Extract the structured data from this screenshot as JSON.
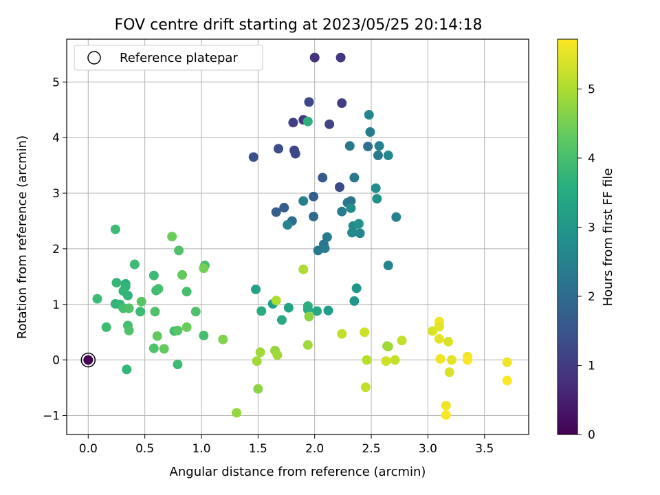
{
  "chart_data": {
    "type": "scatter",
    "title": "FOV centre drift starting at 2023/05/25 20:14:18",
    "xlabel": "Angular distance from reference (arcmin)",
    "ylabel": "Rotation from reference (arcmin)",
    "xlim": [
      -0.19,
      3.89
    ],
    "ylim": [
      -1.34,
      5.77
    ],
    "xticks": [
      0.0,
      0.5,
      1.0,
      1.5,
      2.0,
      2.5,
      3.0,
      3.5
    ],
    "xtick_labels": [
      "0.0",
      "0.5",
      "1.0",
      "1.5",
      "2.0",
      "2.5",
      "3.0",
      "3.5"
    ],
    "yticks": [
      -1,
      0,
      1,
      2,
      3,
      4,
      5
    ],
    "ytick_labels": [
      "−1",
      "0",
      "1",
      "2",
      "3",
      "4",
      "5"
    ],
    "grid": true,
    "legend": {
      "position": "top-left",
      "entries": [
        "Reference platepar"
      ]
    },
    "colorbar": {
      "label": "Hours from first FF file",
      "colormap": "viridis",
      "range": [
        0,
        5.72
      ],
      "ticks": [
        0,
        1,
        2,
        3,
        4,
        5
      ],
      "tick_labels": [
        "0",
        "1",
        "2",
        "3",
        "4",
        "5"
      ]
    },
    "reference_point": {
      "x": 0.0,
      "y": 0.0,
      "c": 0.0
    },
    "points": [
      {
        "x": 2.0,
        "y": 5.44,
        "c": 0.85
      },
      {
        "x": 2.23,
        "y": 5.44,
        "c": 0.9
      },
      {
        "x": 2.24,
        "y": 4.62,
        "c": 1.05
      },
      {
        "x": 1.95,
        "y": 4.64,
        "c": 1.25
      },
      {
        "x": 1.9,
        "y": 4.32,
        "c": 1.0
      },
      {
        "x": 1.81,
        "y": 4.27,
        "c": 1.1
      },
      {
        "x": 2.13,
        "y": 4.24,
        "c": 1.15
      },
      {
        "x": 1.46,
        "y": 3.65,
        "c": 1.4
      },
      {
        "x": 1.68,
        "y": 3.8,
        "c": 1.35
      },
      {
        "x": 1.82,
        "y": 3.77,
        "c": 1.2
      },
      {
        "x": 1.83,
        "y": 3.71,
        "c": 1.25
      },
      {
        "x": 2.07,
        "y": 3.28,
        "c": 1.6
      },
      {
        "x": 2.22,
        "y": 3.11,
        "c": 1.3
      },
      {
        "x": 1.99,
        "y": 2.94,
        "c": 1.7
      },
      {
        "x": 1.9,
        "y": 2.86,
        "c": 2.5
      },
      {
        "x": 1.73,
        "y": 2.74,
        "c": 1.7
      },
      {
        "x": 1.66,
        "y": 2.66,
        "c": 1.7
      },
      {
        "x": 1.8,
        "y": 2.5,
        "c": 2.0
      },
      {
        "x": 1.76,
        "y": 2.43,
        "c": 2.6
      },
      {
        "x": 1.99,
        "y": 2.58,
        "c": 1.9
      },
      {
        "x": 2.48,
        "y": 4.41,
        "c": 2.6
      },
      {
        "x": 2.49,
        "y": 4.1,
        "c": 2.4
      },
      {
        "x": 2.31,
        "y": 3.85,
        "c": 2.3
      },
      {
        "x": 2.47,
        "y": 3.84,
        "c": 2.1
      },
      {
        "x": 2.57,
        "y": 3.85,
        "c": 2.5
      },
      {
        "x": 2.56,
        "y": 3.68,
        "c": 2.3
      },
      {
        "x": 2.65,
        "y": 3.68,
        "c": 2.7
      },
      {
        "x": 2.35,
        "y": 3.28,
        "c": 2.3
      },
      {
        "x": 2.54,
        "y": 3.09,
        "c": 2.8
      },
      {
        "x": 2.29,
        "y": 2.83,
        "c": 2.3
      },
      {
        "x": 2.32,
        "y": 2.86,
        "c": 2.2
      },
      {
        "x": 2.55,
        "y": 2.9,
        "c": 2.9
      },
      {
        "x": 2.32,
        "y": 2.73,
        "c": 2.8
      },
      {
        "x": 2.24,
        "y": 2.67,
        "c": 2.4
      },
      {
        "x": 2.72,
        "y": 2.57,
        "c": 2.5
      },
      {
        "x": 2.34,
        "y": 2.41,
        "c": 2.8
      },
      {
        "x": 2.39,
        "y": 2.45,
        "c": 2.9
      },
      {
        "x": 2.33,
        "y": 2.29,
        "c": 2.7
      },
      {
        "x": 2.4,
        "y": 2.28,
        "c": 2.6
      },
      {
        "x": 2.11,
        "y": 2.21,
        "c": 2.4
      },
      {
        "x": 2.08,
        "y": 2.08,
        "c": 2.3
      },
      {
        "x": 2.09,
        "y": 2.01,
        "c": 2.4
      },
      {
        "x": 2.03,
        "y": 1.97,
        "c": 2.3
      },
      {
        "x": 2.65,
        "y": 1.7,
        "c": 2.6
      },
      {
        "x": 2.37,
        "y": 1.29,
        "c": 3.0
      },
      {
        "x": 2.35,
        "y": 1.06,
        "c": 3.0
      },
      {
        "x": 1.94,
        "y": 4.29,
        "c": 3.6
      },
      {
        "x": 1.48,
        "y": 1.27,
        "c": 3.3
      },
      {
        "x": 1.63,
        "y": 1.01,
        "c": 3.2
      },
      {
        "x": 1.53,
        "y": 0.88,
        "c": 3.5
      },
      {
        "x": 1.71,
        "y": 0.72,
        "c": 3.4
      },
      {
        "x": 1.77,
        "y": 0.94,
        "c": 3.3
      },
      {
        "x": 1.94,
        "y": 0.97,
        "c": 3.6
      },
      {
        "x": 1.94,
        "y": 0.91,
        "c": 3.5
      },
      {
        "x": 2.02,
        "y": 0.88,
        "c": 3.4
      },
      {
        "x": 2.12,
        "y": 0.89,
        "c": 3.2
      },
      {
        "x": 0.24,
        "y": 2.35,
        "c": 3.9
      },
      {
        "x": 0.41,
        "y": 1.72,
        "c": 3.9
      },
      {
        "x": 0.25,
        "y": 1.39,
        "c": 3.8
      },
      {
        "x": 0.33,
        "y": 1.37,
        "c": 3.6
      },
      {
        "x": 0.33,
        "y": 1.32,
        "c": 3.7
      },
      {
        "x": 0.31,
        "y": 1.24,
        "c": 3.8
      },
      {
        "x": 0.35,
        "y": 1.16,
        "c": 3.7
      },
      {
        "x": 0.08,
        "y": 1.1,
        "c": 3.9
      },
      {
        "x": 0.24,
        "y": 1.01,
        "c": 3.7
      },
      {
        "x": 0.28,
        "y": 1.0,
        "c": 3.8
      },
      {
        "x": 0.31,
        "y": 0.93,
        "c": 4.0
      },
      {
        "x": 0.36,
        "y": 0.93,
        "c": 4.1
      },
      {
        "x": 0.46,
        "y": 0.87,
        "c": 3.9
      },
      {
        "x": 0.16,
        "y": 0.59,
        "c": 3.9
      },
      {
        "x": 0.35,
        "y": 0.62,
        "c": 4.0
      },
      {
        "x": 0.36,
        "y": 0.53,
        "c": 4.1
      },
      {
        "x": 0.34,
        "y": -0.17,
        "c": 3.8
      },
      {
        "x": 0.47,
        "y": 1.05,
        "c": 4.2
      },
      {
        "x": 0.58,
        "y": 1.52,
        "c": 3.9
      },
      {
        "x": 0.6,
        "y": 1.25,
        "c": 3.9
      },
      {
        "x": 0.62,
        "y": 1.28,
        "c": 4.0
      },
      {
        "x": 0.59,
        "y": 0.87,
        "c": 4.1
      },
      {
        "x": 0.61,
        "y": 0.43,
        "c": 4.3
      },
      {
        "x": 0.58,
        "y": 0.21,
        "c": 4.1
      },
      {
        "x": 0.67,
        "y": 0.2,
        "c": 4.3
      },
      {
        "x": 0.74,
        "y": 2.22,
        "c": 4.4
      },
      {
        "x": 0.8,
        "y": 1.97,
        "c": 4.1
      },
      {
        "x": 0.83,
        "y": 1.53,
        "c": 4.3
      },
      {
        "x": 0.87,
        "y": 1.23,
        "c": 4.0
      },
      {
        "x": 0.76,
        "y": 0.52,
        "c": 4.0
      },
      {
        "x": 0.79,
        "y": 0.53,
        "c": 4.2
      },
      {
        "x": 0.79,
        "y": -0.08,
        "c": 3.9
      },
      {
        "x": 0.87,
        "y": 0.59,
        "c": 4.4
      },
      {
        "x": 0.95,
        "y": 0.87,
        "c": 4.1
      },
      {
        "x": 1.03,
        "y": 1.7,
        "c": 4.0
      },
      {
        "x": 1.02,
        "y": 1.65,
        "c": 4.5
      },
      {
        "x": 1.02,
        "y": 0.44,
        "c": 4.0
      },
      {
        "x": 1.19,
        "y": 0.37,
        "c": 4.6
      },
      {
        "x": 1.31,
        "y": -0.95,
        "c": 4.8
      },
      {
        "x": 1.52,
        "y": 0.14,
        "c": 4.9
      },
      {
        "x": 1.49,
        "y": -0.02,
        "c": 4.9
      },
      {
        "x": 1.5,
        "y": -0.52,
        "c": 4.7
      },
      {
        "x": 1.66,
        "y": 1.07,
        "c": 5.0
      },
      {
        "x": 1.65,
        "y": 0.17,
        "c": 4.8
      },
      {
        "x": 1.67,
        "y": 0.09,
        "c": 4.9
      },
      {
        "x": 1.9,
        "y": 1.63,
        "c": 5.0
      },
      {
        "x": 1.95,
        "y": 0.78,
        "c": 4.7
      },
      {
        "x": 1.94,
        "y": 0.27,
        "c": 4.9
      },
      {
        "x": 2.24,
        "y": 0.47,
        "c": 5.2
      },
      {
        "x": 2.44,
        "y": 0.5,
        "c": 5.3
      },
      {
        "x": 2.46,
        "y": 0.0,
        "c": 5.1
      },
      {
        "x": 2.45,
        "y": -0.49,
        "c": 5.2
      },
      {
        "x": 2.64,
        "y": 0.25,
        "c": 4.8
      },
      {
        "x": 2.65,
        "y": 0.24,
        "c": 4.9
      },
      {
        "x": 2.63,
        "y": -0.02,
        "c": 5.3
      },
      {
        "x": 2.71,
        "y": 0.0,
        "c": 5.2
      },
      {
        "x": 2.77,
        "y": 0.35,
        "c": 5.2
      },
      {
        "x": 3.04,
        "y": 0.52,
        "c": 5.4
      },
      {
        "x": 3.1,
        "y": 0.69,
        "c": 5.6
      },
      {
        "x": 3.1,
        "y": 0.6,
        "c": 5.5
      },
      {
        "x": 3.1,
        "y": 0.38,
        "c": 5.5
      },
      {
        "x": 3.11,
        "y": 0.02,
        "c": 5.6
      },
      {
        "x": 3.18,
        "y": 0.33,
        "c": 5.4
      },
      {
        "x": 3.21,
        "y": 0.0,
        "c": 5.5
      },
      {
        "x": 3.19,
        "y": -0.22,
        "c": 5.4
      },
      {
        "x": 3.16,
        "y": -0.82,
        "c": 5.6
      },
      {
        "x": 3.16,
        "y": -0.99,
        "c": 5.7
      },
      {
        "x": 3.35,
        "y": 0.06,
        "c": 5.6
      },
      {
        "x": 3.35,
        "y": 0.0,
        "c": 5.7
      },
      {
        "x": 3.7,
        "y": -0.04,
        "c": 5.6
      },
      {
        "x": 3.7,
        "y": -0.37,
        "c": 5.7
      }
    ]
  }
}
